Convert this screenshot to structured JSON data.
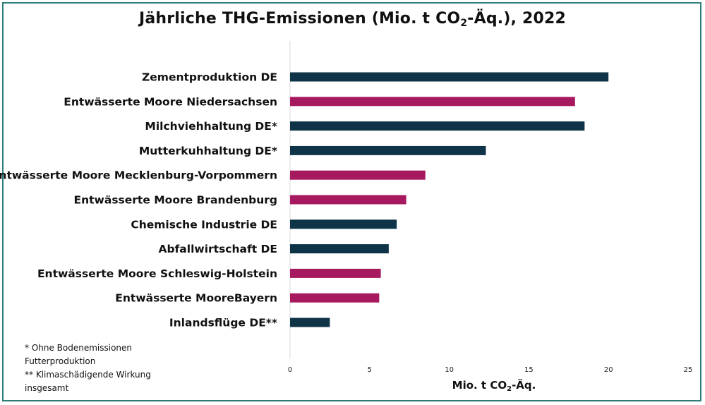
{
  "title_main": "Jährliche THG-Emissionen (Mio. t CO",
  "title_sub": "2",
  "title_end": "-Äq.), 2022",
  "xlabel_main": "Mio. t CO",
  "xlabel_sub": "2",
  "xlabel_end": "-Äq.",
  "notes": [
    "* Ohne Bodenemissionen",
    "Futterproduktion",
    "** Klimaschädigende Wirkung",
    "insgesamt"
  ],
  "colors": {
    "navy": "#0f3447",
    "magenta": "#a7195f",
    "frame": "#2f7e7a"
  },
  "chart_data": {
    "type": "bar",
    "orientation": "horizontal",
    "categories": [
      "Zementproduktion DE",
      "Entwässerte Moore Niedersachsen",
      "Milchviehhaltung DE*",
      "Mutterkuhhaltung DE*",
      "Entwässerte Moore Mecklenburg-Vorpommern",
      "Entwässerte Moore Brandenburg",
      "Chemische Industrie DE",
      "Abfallwirtschaft DE",
      "Entwässerte Moore Schleswig-Holstein",
      "Entwässerte MooreBayern",
      "Inlandsflüge DE**"
    ],
    "values": [
      20.0,
      17.9,
      18.5,
      12.3,
      8.5,
      7.3,
      6.7,
      6.2,
      5.7,
      5.6,
      2.5
    ],
    "bar_colors": [
      "navy",
      "magenta",
      "navy",
      "navy",
      "magenta",
      "magenta",
      "navy",
      "navy",
      "magenta",
      "magenta",
      "navy"
    ],
    "xlim": [
      0,
      25
    ],
    "xticks": [
      0,
      5,
      10,
      15,
      20,
      25
    ],
    "grid": false
  }
}
